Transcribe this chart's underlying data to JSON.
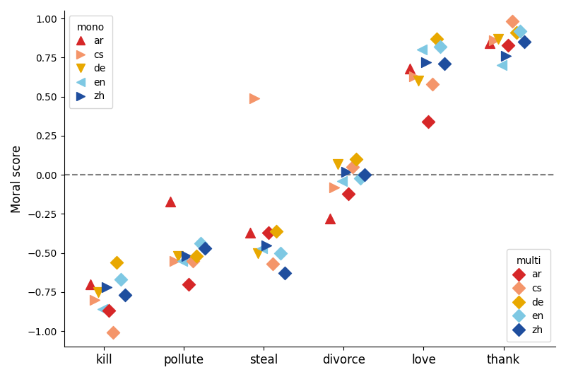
{
  "categories": [
    "kill",
    "pollute",
    "steal",
    "divorce",
    "love",
    "thank"
  ],
  "cat_x": [
    0,
    1,
    2,
    3,
    4,
    5
  ],
  "languages": [
    "ar",
    "cs",
    "de",
    "en",
    "zh"
  ],
  "colors": {
    "ar": "#d62728",
    "cs": "#f4956a",
    "de": "#e8a800",
    "en": "#7ec8e3",
    "zh": "#1f4e9e"
  },
  "mono_markers": {
    "ar": "^",
    "cs": ">",
    "de": "v",
    "en": "<",
    "zh": ">"
  },
  "ylabel": "Moral score",
  "ylim": [
    -1.1,
    1.05
  ],
  "mono_data": {
    "ar": {
      "kill": -0.7,
      "pollute": -0.17,
      "steal": -0.37,
      "divorce": -0.28,
      "love": 0.68,
      "thank": 0.84
    },
    "cs": {
      "kill": -0.8,
      "pollute": -0.55,
      "steal": 0.49,
      "divorce": -0.08,
      "love": 0.63,
      "thank": 0.86
    },
    "de": {
      "kill": -0.75,
      "pollute": -0.52,
      "steal": -0.5,
      "divorce": 0.07,
      "love": 0.6,
      "thank": 0.87
    },
    "en": {
      "kill": -0.86,
      "pollute": -0.55,
      "steal": -0.47,
      "divorce": -0.04,
      "love": 0.8,
      "thank": 0.7
    },
    "zh": {
      "kill": -0.72,
      "pollute": -0.52,
      "steal": -0.45,
      "divorce": 0.02,
      "love": 0.72,
      "thank": 0.76
    }
  },
  "multi_data": {
    "ar": {
      "kill": -0.87,
      "pollute": -0.7,
      "steal": -0.37,
      "divorce": -0.12,
      "love": 0.34,
      "thank": 0.83
    },
    "cs": {
      "kill": -1.01,
      "pollute": -0.55,
      "steal": -0.57,
      "divorce": 0.05,
      "love": 0.58,
      "thank": 0.98
    },
    "de": {
      "kill": -0.56,
      "pollute": -0.52,
      "steal": -0.36,
      "divorce": 0.1,
      "love": 0.87,
      "thank": 0.91
    },
    "en": {
      "kill": -0.67,
      "pollute": -0.44,
      "steal": -0.5,
      "divorce": -0.02,
      "love": 0.82,
      "thank": 0.92
    },
    "zh": {
      "kill": -0.77,
      "pollute": -0.47,
      "steal": -0.63,
      "divorce": 0.0,
      "love": 0.71,
      "thank": 0.85
    }
  },
  "mono_offsets": {
    "ar": -0.17,
    "cs": -0.12,
    "de": -0.07,
    "en": -0.02,
    "zh": 0.03
  },
  "multi_offsets": {
    "ar": 0.06,
    "cs": 0.11,
    "de": 0.16,
    "en": 0.21,
    "zh": 0.26
  },
  "marker_size": 100
}
